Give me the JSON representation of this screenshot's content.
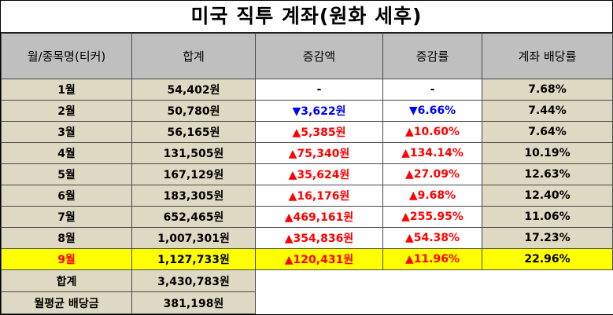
{
  "title": "미국 직투 계좌(원화 세후)",
  "columns": [
    "월/종목명(티커)",
    "합계",
    "증감액",
    "증감률",
    "계좌 배당률"
  ],
  "rows": [
    {
      "month": "1월",
      "total": "54,402원",
      "diff": "-",
      "rate": "-",
      "yield": "7.68%",
      "dir": "none"
    },
    {
      "month": "2월",
      "total": "50,780원",
      "diff": "▼3,622원",
      "rate": "▼6.66%",
      "yield": "7.44%",
      "dir": "down"
    },
    {
      "month": "3월",
      "total": "56,165원",
      "diff": "▲5,385원",
      "rate": "▲10.60%",
      "yield": "7.64%",
      "dir": "up"
    },
    {
      "month": "4월",
      "total": "131,505원",
      "diff": "▲75,340원",
      "rate": "▲134.14%",
      "yield": "10.19%",
      "dir": "up"
    },
    {
      "month": "5월",
      "total": "167,129원",
      "diff": "▲35,624원",
      "rate": "▲27.09%",
      "yield": "12.63%",
      "dir": "up"
    },
    {
      "month": "6월",
      "total": "183,305원",
      "diff": "▲16,176원",
      "rate": "▲9.68%",
      "yield": "12.40%",
      "dir": "up"
    },
    {
      "month": "7월",
      "total": "652,465원",
      "diff": "▲469,161원",
      "rate": "▲255.95%",
      "yield": "11.06%",
      "dir": "up"
    },
    {
      "month": "8월",
      "total": "1,007,301원",
      "diff": "▲354,836원",
      "rate": "▲54.38%",
      "yield": "17.23%",
      "dir": "up"
    },
    {
      "month": "9월",
      "total": "1,127,733원",
      "diff": "▲120,431원",
      "rate": "▲11.96%",
      "yield": "22.96%",
      "dir": "up",
      "highlight": true
    }
  ],
  "summary": [
    {
      "label": "합계",
      "value": "3,430,783원"
    },
    {
      "label": "월평균 배당금",
      "value": "381,198원"
    }
  ],
  "colors": {
    "header_bg": "#bfbfbf",
    "cell_bg": "#ddd9c3",
    "highlight_bg": "#ffff00",
    "up": "#ff0000",
    "down": "#0000ff"
  }
}
